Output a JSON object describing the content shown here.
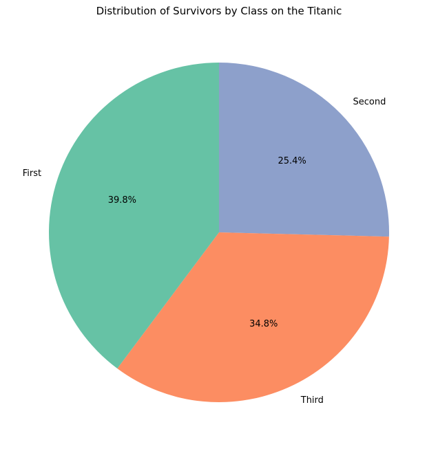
{
  "chart_data": {
    "type": "pie",
    "title": "Distribution of Survivors by Class on the Titanic",
    "slices": [
      {
        "label": "Second",
        "value": 25.4,
        "pct_label": "25.4%",
        "color": "#8da0cb"
      },
      {
        "label": "Third",
        "value": 34.8,
        "pct_label": "34.8%",
        "color": "#fc8d62"
      },
      {
        "label": "First",
        "value": 39.8,
        "pct_label": "39.8%",
        "color": "#66c2a5"
      }
    ],
    "start_angle_deg": 90,
    "direction": "clockwise",
    "legend": "none"
  }
}
